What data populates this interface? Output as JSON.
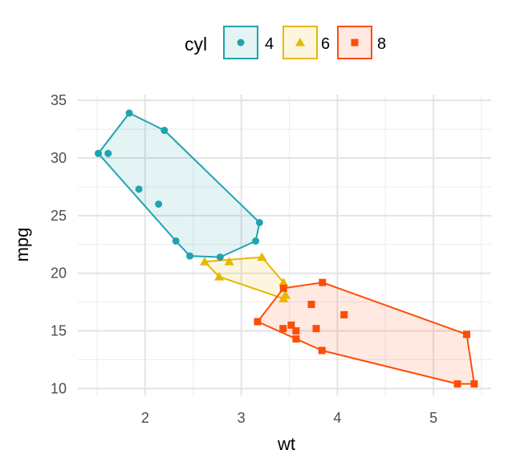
{
  "chart_data": {
    "type": "scatter",
    "xlabel": "wt",
    "ylabel": "mpg",
    "xlim": [
      1.3,
      5.6
    ],
    "ylim": [
      9.4,
      35.5
    ],
    "x_ticks": [
      2,
      3,
      4,
      5
    ],
    "y_ticks": [
      10,
      15,
      20,
      25,
      30,
      35
    ],
    "x_minor": [
      1.5,
      2.5,
      3.5,
      4.5,
      5.5
    ],
    "y_minor": [
      12.5,
      17.5,
      22.5,
      27.5,
      32.5
    ],
    "grid": true,
    "legend": {
      "title": "cyl",
      "placement": "top"
    },
    "series": [
      {
        "name": "4",
        "color": "#1FA3AE",
        "marker": "circle",
        "points": [
          [
            2.32,
            22.8
          ],
          [
            3.19,
            24.4
          ],
          [
            3.15,
            22.8
          ],
          [
            2.2,
            32.4
          ],
          [
            1.615,
            30.4
          ],
          [
            1.835,
            33.9
          ],
          [
            2.465,
            21.5
          ],
          [
            1.935,
            27.3
          ],
          [
            2.14,
            26.0
          ],
          [
            1.513,
            30.4
          ],
          [
            2.78,
            21.4
          ]
        ],
        "hull": [
          [
            1.513,
            30.4
          ],
          [
            1.835,
            33.9
          ],
          [
            2.2,
            32.4
          ],
          [
            3.19,
            24.4
          ],
          [
            3.15,
            22.8
          ],
          [
            2.78,
            21.4
          ],
          [
            2.465,
            21.5
          ],
          [
            2.32,
            22.8
          ],
          [
            1.513,
            30.4
          ]
        ]
      },
      {
        "name": "6",
        "color": "#E7B800",
        "marker": "triangle",
        "points": [
          [
            2.62,
            21.0
          ],
          [
            2.875,
            21.0
          ],
          [
            3.215,
            21.4
          ],
          [
            3.46,
            18.1
          ],
          [
            3.44,
            19.2
          ],
          [
            3.44,
            17.8
          ],
          [
            2.77,
            19.7
          ]
        ],
        "hull": [
          [
            2.62,
            21.0
          ],
          [
            3.215,
            21.4
          ],
          [
            3.44,
            19.2
          ],
          [
            3.46,
            18.1
          ],
          [
            3.44,
            17.8
          ],
          [
            2.77,
            19.7
          ],
          [
            2.62,
            21.0
          ]
        ]
      },
      {
        "name": "8",
        "color": "#FC4E07",
        "marker": "square",
        "points": [
          [
            3.44,
            18.7
          ],
          [
            3.57,
            14.3
          ],
          [
            4.07,
            16.4
          ],
          [
            3.73,
            17.3
          ],
          [
            3.78,
            15.2
          ],
          [
            5.25,
            10.4
          ],
          [
            5.424,
            10.4
          ],
          [
            5.345,
            14.7
          ],
          [
            3.52,
            15.5
          ],
          [
            3.435,
            15.2
          ],
          [
            3.84,
            13.3
          ],
          [
            3.845,
            19.2
          ],
          [
            3.17,
            15.8
          ],
          [
            3.57,
            15.0
          ]
        ],
        "hull": [
          [
            3.44,
            18.7
          ],
          [
            3.845,
            19.2
          ],
          [
            5.345,
            14.7
          ],
          [
            5.424,
            10.4
          ],
          [
            5.25,
            10.4
          ],
          [
            3.84,
            13.3
          ],
          [
            3.17,
            15.8
          ],
          [
            3.44,
            18.7
          ]
        ]
      }
    ]
  }
}
